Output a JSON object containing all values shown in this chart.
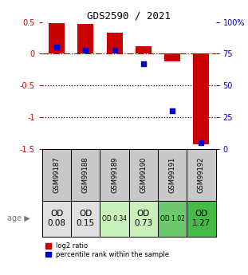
{
  "title": "GDS2590 / 2021",
  "samples": [
    "GSM99187",
    "GSM99188",
    "GSM99189",
    "GSM99190",
    "GSM99191",
    "GSM99192"
  ],
  "log2_ratio": [
    0.48,
    0.47,
    0.33,
    0.12,
    -0.12,
    -1.43
  ],
  "percentile_rank": [
    80,
    78,
    78,
    67,
    30,
    5
  ],
  "age_labels": [
    "OD\n0.08",
    "OD\n0.15",
    "OD 0.34",
    "OD\n0.73",
    "OD 1.02",
    "OD\n1.27"
  ],
  "age_fontsize_large": [
    true,
    true,
    false,
    true,
    false,
    true
  ],
  "cell_colors": [
    "#e0e0e0",
    "#e0e0e0",
    "#c8f0b8",
    "#c8f0b8",
    "#6cca6c",
    "#44bb44"
  ],
  "bar_color": "#cc0000",
  "dot_color": "#0000cc",
  "ylim": [
    -1.5,
    0.5
  ],
  "y2lim": [
    0,
    100
  ],
  "y2ticks": [
    0,
    25,
    50,
    75,
    100
  ],
  "y2ticklabels": [
    "0",
    "25",
    "50",
    "75",
    "100%"
  ],
  "yticks": [
    -1.5,
    -1.0,
    -0.5,
    0.0,
    0.5
  ],
  "hline_color": "#cc0000",
  "dotted_line_color": "black",
  "background": "white",
  "sample_cell_color": "#c8c8c8"
}
